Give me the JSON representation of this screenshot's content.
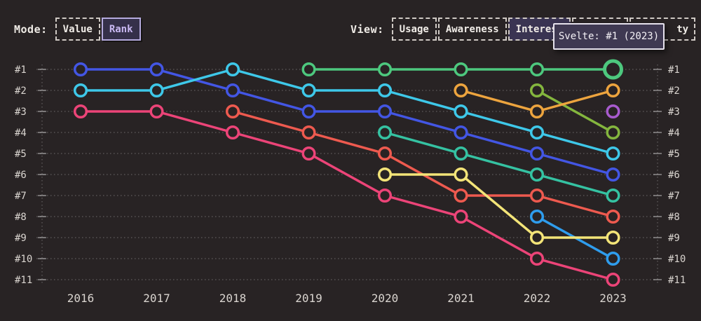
{
  "mode_toolbar": {
    "label": "Mode:",
    "options": [
      {
        "label": "Value",
        "active": false
      },
      {
        "label": "Rank",
        "active": true
      }
    ]
  },
  "view_toolbar": {
    "label": "View:",
    "options": [
      {
        "label": "Usage",
        "active": false
      },
      {
        "label": "Awareness",
        "active": false
      },
      {
        "label": "Interest",
        "active": true
      },
      {
        "label": "",
        "active": false,
        "note": "button fully obscured by tooltip"
      },
      {
        "label": "ty",
        "active": false,
        "note": "button mostly obscured by tooltip; only trailing 'ty' visible"
      }
    ]
  },
  "tooltip": {
    "text": "Svelte: #1 (2023)"
  },
  "chart_data": {
    "type": "line",
    "variant": "bump-rank-chart",
    "x_labels": [
      "2016",
      "2017",
      "2018",
      "2019",
      "2020",
      "2021",
      "2022",
      "2023"
    ],
    "y_labels": [
      "#1",
      "#2",
      "#3",
      "#4",
      "#5",
      "#6",
      "#7",
      "#8",
      "#9",
      "#10",
      "#11"
    ],
    "y_axis": {
      "range_ranks": [
        1,
        11
      ],
      "shown_on": "both sides",
      "grid": "dotted horizontal line per rank"
    },
    "series": [
      {
        "name": "blue",
        "color": "#4356e4",
        "points": [
          [
            2016,
            1
          ],
          [
            2017,
            1
          ],
          [
            2018,
            2
          ],
          [
            2019,
            3
          ],
          [
            2020,
            3
          ],
          [
            2021,
            4
          ],
          [
            2022,
            5
          ],
          [
            2023,
            6
          ]
        ]
      },
      {
        "name": "cyan",
        "color": "#3ec8e9",
        "points": [
          [
            2016,
            2
          ],
          [
            2017,
            2
          ],
          [
            2018,
            1
          ],
          [
            2019,
            2
          ],
          [
            2020,
            2
          ],
          [
            2021,
            3
          ],
          [
            2022,
            4
          ],
          [
            2023,
            5
          ]
        ]
      },
      {
        "name": "pink",
        "color": "#ec4478",
        "points": [
          [
            2016,
            3
          ],
          [
            2017,
            3
          ],
          [
            2018,
            4
          ],
          [
            2019,
            5
          ],
          [
            2020,
            7
          ],
          [
            2021,
            8
          ],
          [
            2022,
            10
          ],
          [
            2023,
            11
          ]
        ]
      },
      {
        "name": "salmon",
        "color": "#ee5a4f",
        "points": [
          [
            2018,
            3
          ],
          [
            2019,
            4
          ],
          [
            2020,
            5
          ],
          [
            2021,
            7
          ],
          [
            2022,
            7
          ],
          [
            2023,
            8
          ]
        ]
      },
      {
        "name": "green",
        "color": "#4dc87e",
        "points": [
          [
            2019,
            1
          ],
          [
            2020,
            1
          ],
          [
            2021,
            1
          ],
          [
            2022,
            1
          ],
          [
            2023,
            1
          ]
        ]
      },
      {
        "name": "teal",
        "color": "#35c2a2",
        "points": [
          [
            2020,
            4
          ],
          [
            2021,
            5
          ],
          [
            2022,
            6
          ],
          [
            2023,
            7
          ]
        ]
      },
      {
        "name": "lime",
        "color": "#84b63e",
        "points": [
          [
            2022,
            2
          ],
          [
            2023,
            4
          ]
        ]
      },
      {
        "name": "orange",
        "color": "#eda43e",
        "points": [
          [
            2021,
            2
          ],
          [
            2022,
            3
          ],
          [
            2023,
            2
          ]
        ]
      },
      {
        "name": "sky",
        "color": "#2f9ded",
        "points": [
          [
            2022,
            8
          ],
          [
            2023,
            10
          ]
        ]
      },
      {
        "name": "yellow",
        "color": "#f3e478",
        "points": [
          [
            2020,
            6
          ],
          [
            2021,
            6
          ],
          [
            2022,
            9
          ],
          [
            2023,
            9
          ]
        ]
      },
      {
        "name": "purple",
        "color": "#a85bce",
        "points": [
          [
            2023,
            3
          ]
        ]
      }
    ],
    "highlight": {
      "series": "green",
      "x": 2023,
      "rank": 1,
      "tooltip": "Svelte: #1 (2023)"
    }
  }
}
